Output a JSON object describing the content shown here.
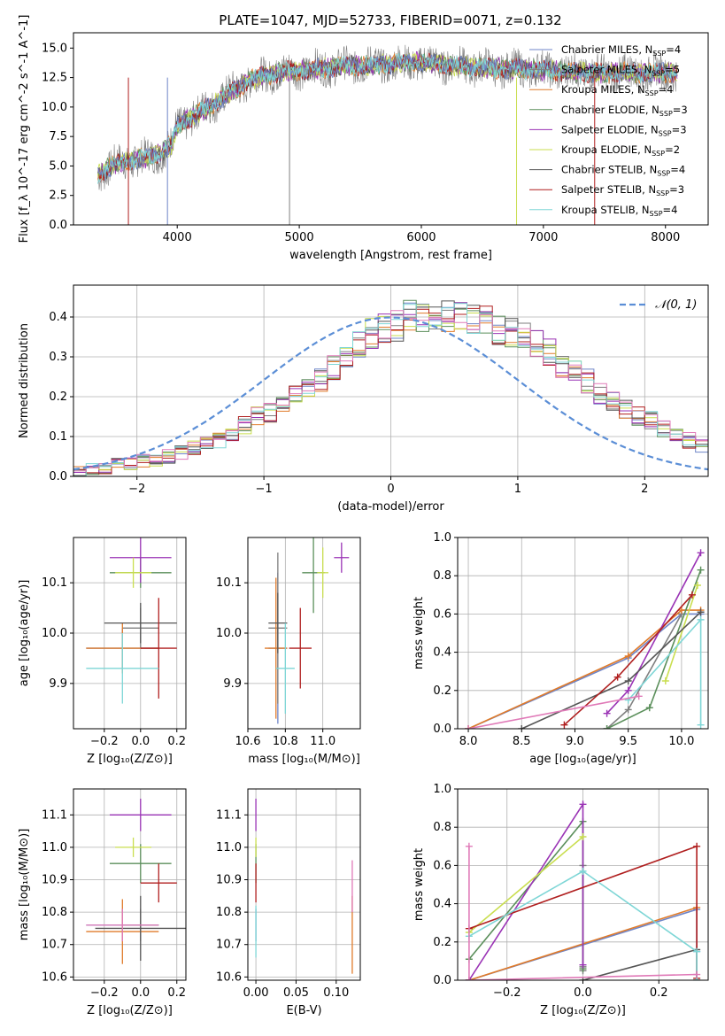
{
  "page": {
    "title": "PLATE=1047, MJD=52733, FIBERID=0071, z=0.132"
  },
  "colors": [
    "#6f85c8",
    "#7f7f7f",
    "#e07b2a",
    "#5b8f5b",
    "#9a33b5",
    "#c9de4f",
    "#555555",
    "#b01f1f",
    "#7ed6d6"
  ],
  "chart_data": [
    {
      "id": "spectrum",
      "type": "line",
      "title": "PLATE=1047, MJD=52733, FIBERID=0071, z=0.132",
      "xlabel": "wavelength [Angstrom, rest frame]",
      "ylabel": "Flux [f_λ 10^-17 erg cm^-2 s^-1 A^-1]",
      "xlim": [
        3150,
        8350
      ],
      "ylim": [
        0,
        16.3
      ],
      "xticks": [
        4000,
        5000,
        6000,
        7000,
        8000
      ],
      "yticks": [
        0.0,
        2.5,
        5.0,
        7.5,
        10.0,
        12.5,
        15.0
      ],
      "ytick_labels": [
        "0.0",
        "2.5",
        "5.0",
        "7.5",
        "10.0",
        "12.5",
        "15.0"
      ],
      "legend_position": "right",
      "legend": [
        {
          "label": "Chabrier MILES, N",
          "sub": "SSP",
          "tail": "=4"
        },
        {
          "label": "Salpeter MILES, N",
          "sub": "SSP",
          "tail": "=5"
        },
        {
          "label": "Kroupa MILES, N",
          "sub": "SSP",
          "tail": "=4"
        },
        {
          "label": "Chabrier ELODIE, N",
          "sub": "SSP",
          "tail": "=3"
        },
        {
          "label": "Salpeter ELODIE, N",
          "sub": "SSP",
          "tail": "=3"
        },
        {
          "label": "Kroupa ELODIE, N",
          "sub": "SSP",
          "tail": "=2"
        },
        {
          "label": "Chabrier STELIB, N",
          "sub": "SSP",
          "tail": "=4"
        },
        {
          "label": "Salpeter STELIB, N",
          "sub": "SSP",
          "tail": "=3"
        },
        {
          "label": "Kroupa STELIB, N",
          "sub": "SSP",
          "tail": "=4"
        }
      ],
      "continuum": [
        [
          3350,
          4.3
        ],
        [
          3500,
          5.2
        ],
        [
          3700,
          5.6
        ],
        [
          3850,
          6.0
        ],
        [
          3950,
          6.8
        ],
        [
          4000,
          8.4
        ],
        [
          4200,
          9.6
        ],
        [
          4400,
          11.0
        ],
        [
          4600,
          12.3
        ],
        [
          4800,
          12.9
        ],
        [
          5000,
          13.1
        ],
        [
          5300,
          13.4
        ],
        [
          5600,
          13.6
        ],
        [
          6000,
          13.8
        ],
        [
          6300,
          13.5
        ],
        [
          6600,
          13.3
        ],
        [
          6900,
          13.2
        ],
        [
          7200,
          13.0
        ],
        [
          7500,
          12.9
        ],
        [
          7800,
          12.9
        ],
        [
          8100,
          12.9
        ]
      ]
    },
    {
      "id": "residual-histogram",
      "type": "histogram",
      "xlabel": "(data-model)/error",
      "ylabel": "Normed distribution",
      "xlim": [
        -2.5,
        2.5
      ],
      "ylim": [
        0,
        0.48
      ],
      "xticks": [
        -2,
        -1,
        0,
        1,
        2
      ],
      "xtick_labels": [
        "−2",
        "−1",
        "0",
        "1",
        "2"
      ],
      "yticks": [
        0.0,
        0.1,
        0.2,
        0.3,
        0.4
      ],
      "ytick_labels": [
        "0.0",
        "0.1",
        "0.2",
        "0.3",
        "0.4"
      ],
      "bin_edges_range": [
        -2.5,
        2.5
      ],
      "bin_width": 0.1,
      "gaussian_label": "𝒩(0, 1)",
      "legend_position": "top-right",
      "series_base": [
        0.01,
        0.02,
        0.02,
        0.03,
        0.03,
        0.04,
        0.04,
        0.05,
        0.06,
        0.07,
        0.08,
        0.09,
        0.11,
        0.13,
        0.15,
        0.16,
        0.18,
        0.2,
        0.22,
        0.24,
        0.27,
        0.3,
        0.33,
        0.36,
        0.37,
        0.38,
        0.4,
        0.4,
        0.4,
        0.4,
        0.4,
        0.39,
        0.39,
        0.37,
        0.36,
        0.35,
        0.33,
        0.31,
        0.28,
        0.26,
        0.24,
        0.21,
        0.19,
        0.17,
        0.15,
        0.14,
        0.12,
        0.11,
        0.09,
        0.08,
        0.07,
        0.06,
        0.05,
        0.04,
        0.03,
        0.03,
        0.02,
        0.02,
        0.02,
        0.01
      ]
    },
    {
      "id": "age-vs-Z",
      "type": "scatter",
      "xlabel": "Z [log₁₀(Z/Z⊙)]",
      "ylabel": "age  [log₁₀(age/yr)]",
      "xlim": [
        -0.37,
        0.25
      ],
      "ylim": [
        9.81,
        10.19
      ],
      "xticks": [
        -0.2,
        0.0,
        0.2
      ],
      "xtick_labels": [
        "−0.2",
        "0.0",
        "0.2"
      ],
      "yticks": [
        9.9,
        10.0,
        10.1
      ],
      "ytick_labels": [
        "9.9",
        "10.0",
        "10.1"
      ],
      "points": [
        {
          "x": -0.1,
          "xerr": 0.2,
          "y": 9.97,
          "yerr": 0.04,
          "color": 0
        },
        {
          "x": 0.0,
          "xerr": 0.1,
          "y": 10.01,
          "yerr": 0.04,
          "color": 1
        },
        {
          "x": -0.1,
          "xerr": 0.2,
          "y": 9.97,
          "yerr": 0.05,
          "color": 2
        },
        {
          "x": 0.0,
          "xerr": 0.17,
          "y": 10.12,
          "yerr": 0.03,
          "color": 3
        },
        {
          "x": 0.0,
          "xerr": 0.17,
          "y": 10.15,
          "yerr": 0.05,
          "color": 4
        },
        {
          "x": -0.04,
          "xerr": 0.1,
          "y": 10.12,
          "yerr": 0.03,
          "color": 5
        },
        {
          "x": 0.0,
          "xerr": 0.2,
          "y": 10.02,
          "yerr": 0.04,
          "color": 6
        },
        {
          "x": 0.1,
          "xerr": 0.1,
          "y": 9.97,
          "yerr": 0.1,
          "color": 7
        },
        {
          "x": -0.1,
          "xerr": 0.2,
          "y": 9.93,
          "yerr": 0.07,
          "color": 8
        }
      ]
    },
    {
      "id": "age-vs-mass",
      "type": "scatter",
      "xlabel": "mass [log₁₀(M/M⊙)]",
      "ylabel": "",
      "xlim": [
        10.6,
        11.2
      ],
      "ylim": [
        9.81,
        10.19
      ],
      "xticks": [
        10.6,
        10.8,
        11.0
      ],
      "xtick_labels": [
        "10.6",
        "10.8",
        "11.0"
      ],
      "yticks": [
        9.9,
        10.0,
        10.1
      ],
      "ytick_labels": [
        "9.9",
        "10.0",
        "10.1"
      ],
      "points": [
        {
          "x": 10.76,
          "xerr": 0.05,
          "y": 9.97,
          "yerr": 0.15,
          "color": 0
        },
        {
          "x": 10.76,
          "xerr": 0.05,
          "y": 10.01,
          "yerr": 0.15,
          "color": 1
        },
        {
          "x": 10.75,
          "xerr": 0.06,
          "y": 9.97,
          "yerr": 0.14,
          "color": 2
        },
        {
          "x": 10.95,
          "xerr": 0.06,
          "y": 10.12,
          "yerr": 0.08,
          "color": 3
        },
        {
          "x": 11.1,
          "xerr": 0.04,
          "y": 10.15,
          "yerr": 0.03,
          "color": 4
        },
        {
          "x": 11.0,
          "xerr": 0.03,
          "y": 10.12,
          "yerr": 0.05,
          "color": 5
        },
        {
          "x": 10.76,
          "xerr": 0.05,
          "y": 10.02,
          "yerr": 0.06,
          "color": 6
        },
        {
          "x": 10.88,
          "xerr": 0.06,
          "y": 9.97,
          "yerr": 0.08,
          "color": 7
        },
        {
          "x": 10.8,
          "xerr": 0.05,
          "y": 9.93,
          "yerr": 0.09,
          "color": 8
        }
      ]
    },
    {
      "id": "massweight-vs-age",
      "type": "line",
      "xlabel": "age  [log₁₀(age/yr)]",
      "ylabel": "mass weight",
      "xlim": [
        7.9,
        10.25
      ],
      "ylim": [
        0,
        1.0
      ],
      "xticks": [
        8.0,
        8.5,
        9.0,
        9.5,
        10.0
      ],
      "xtick_labels": [
        "8.0",
        "8.5",
        "9.0",
        "9.5",
        "10.0"
      ],
      "yticks": [
        0.0,
        0.2,
        0.4,
        0.6,
        0.8,
        1.0
      ],
      "ytick_labels": [
        "0.0",
        "0.2",
        "0.4",
        "0.6",
        "0.8",
        "1.0"
      ],
      "series": [
        {
          "color": 0,
          "x": [
            8.0,
            9.5,
            10.0,
            10.18
          ],
          "y": [
            0.0,
            0.37,
            0.6,
            0.6
          ]
        },
        {
          "color": 1,
          "x": [
            9.3,
            9.5,
            10.0
          ],
          "y": [
            0.0,
            0.1,
            0.6
          ]
        },
        {
          "color": 2,
          "x": [
            8.0,
            9.5,
            10.0,
            10.18
          ],
          "y": [
            0.0,
            0.38,
            0.62,
            0.62
          ]
        },
        {
          "color": 3,
          "x": [
            9.3,
            9.7,
            10.18
          ],
          "y": [
            0.0,
            0.11,
            0.83
          ]
        },
        {
          "color": 4,
          "x": [
            9.3,
            9.5,
            10.18
          ],
          "y": [
            0.08,
            0.2,
            0.92
          ]
        },
        {
          "color": 5,
          "x": [
            9.85,
            10.15
          ],
          "y": [
            0.25,
            0.75
          ]
        },
        {
          "color": 6,
          "x": [
            8.5,
            9.5,
            10.18
          ],
          "y": [
            0.0,
            0.25,
            0.61
          ]
        },
        {
          "color": 7,
          "x": [
            8.9,
            9.4,
            10.1
          ],
          "y": [
            0.02,
            0.27,
            0.7
          ]
        },
        {
          "color": 8,
          "x": [
            9.5,
            10.18,
            10.18
          ],
          "y": [
            0.15,
            0.57,
            0.02
          ]
        },
        {
          "color": 9,
          "x": [
            8.0,
            9.6
          ],
          "y": [
            0.0,
            0.17
          ]
        }
      ]
    },
    {
      "id": "mass-vs-Z",
      "type": "scatter",
      "xlabel": "Z [log₁₀(Z/Z⊙)]",
      "ylabel": "mass [log₁₀(M/M⊙)]",
      "xlim": [
        -0.37,
        0.25
      ],
      "ylim": [
        10.59,
        11.18
      ],
      "xticks": [
        -0.2,
        0.0,
        0.2
      ],
      "xtick_labels": [
        "−0.2",
        "0.0",
        "0.2"
      ],
      "yticks": [
        10.6,
        10.7,
        10.8,
        10.9,
        11.0,
        11.1
      ],
      "ytick_labels": [
        "10.6",
        "10.7",
        "10.8",
        "10.9",
        "11.0",
        "11.1"
      ],
      "points": [
        {
          "x": -0.1,
          "xerr": 0.2,
          "y": 10.76,
          "yerr": 0.05,
          "color": 0
        },
        {
          "x": 0.0,
          "xerr": 0.1,
          "y": 10.76,
          "yerr": 0.05,
          "color": 1
        },
        {
          "x": -0.1,
          "xerr": 0.2,
          "y": 10.74,
          "yerr": 0.1,
          "color": 2
        },
        {
          "x": 0.0,
          "xerr": 0.17,
          "y": 10.95,
          "yerr": 0.06,
          "color": 3
        },
        {
          "x": 0.0,
          "xerr": 0.17,
          "y": 11.1,
          "yerr": 0.05,
          "color": 4
        },
        {
          "x": -0.04,
          "xerr": 0.1,
          "y": 11.0,
          "yerr": 0.03,
          "color": 5
        },
        {
          "x": 0.0,
          "xerr": 0.25,
          "y": 10.75,
          "yerr": 0.1,
          "color": 6
        },
        {
          "x": 0.1,
          "xerr": 0.1,
          "y": 10.89,
          "yerr": 0.06,
          "color": 7
        },
        {
          "x": -0.1,
          "xerr": 0.2,
          "y": 10.76,
          "yerr": 0.05,
          "color": 9
        }
      ]
    },
    {
      "id": "mass-vs-EBV",
      "type": "scatter",
      "xlabel": "E(B-V)",
      "ylabel": "",
      "xlim": [
        -0.01,
        0.13
      ],
      "ylim": [
        10.59,
        11.18
      ],
      "xticks": [
        0.0,
        0.05,
        0.1
      ],
      "xtick_labels": [
        "0.00",
        "0.05",
        "0.10"
      ],
      "yticks": [
        10.6,
        10.7,
        10.8,
        10.9,
        11.0,
        11.1
      ],
      "ytick_labels": [
        "10.6",
        "10.7",
        "10.8",
        "10.9",
        "11.0",
        "11.1"
      ],
      "points": [
        {
          "x": 0.0,
          "xerr": 0,
          "y": 10.76,
          "yerr": 0.05,
          "color": 0
        },
        {
          "x": 0.0,
          "xerr": 0,
          "y": 10.95,
          "yerr": 0.06,
          "color": 3
        },
        {
          "x": 0.0,
          "xerr": 0,
          "y": 11.1,
          "yerr": 0.05,
          "color": 4
        },
        {
          "x": 0.0,
          "xerr": 0,
          "y": 11.0,
          "yerr": 0.03,
          "color": 5
        },
        {
          "x": 0.0,
          "xerr": 0,
          "y": 10.89,
          "yerr": 0.06,
          "color": 7
        },
        {
          "x": 0.0,
          "xerr": 0,
          "y": 10.74,
          "yerr": 0.08,
          "color": 8
        },
        {
          "x": 0.12,
          "xerr": 0,
          "y": 10.73,
          "yerr": 0.12,
          "color": 2
        },
        {
          "x": 0.12,
          "xerr": 0,
          "y": 10.88,
          "yerr": 0.08,
          "color": 9
        }
      ]
    },
    {
      "id": "massweight-vs-Z",
      "type": "line",
      "xlabel": "Z [log₁₀(Z/Z⊙)]",
      "ylabel": "mass weight",
      "xlim": [
        -0.33,
        0.33
      ],
      "ylim": [
        0,
        1.0
      ],
      "xticks": [
        -0.2,
        0.0,
        0.2
      ],
      "xtick_labels": [
        "−0.2",
        "0.0",
        "0.2"
      ],
      "yticks": [
        0.0,
        0.2,
        0.4,
        0.6,
        0.8,
        1.0
      ],
      "ytick_labels": [
        "0.0",
        "0.2",
        "0.4",
        "0.6",
        "0.8",
        "1.0"
      ],
      "series": [
        {
          "color": 0,
          "x": [
            -0.3,
            0.3,
            0.3
          ],
          "y": [
            0.0,
            0.37,
            0.15
          ]
        },
        {
          "color": 1,
          "x": [
            0.0,
            0.0,
            0.0
          ],
          "y": [
            0.07,
            0.6,
            0.05
          ]
        },
        {
          "color": 2,
          "x": [
            -0.3,
            0.3
          ],
          "y": [
            0.0,
            0.38
          ]
        },
        {
          "color": 3,
          "x": [
            -0.3,
            0.0,
            0.0
          ],
          "y": [
            0.11,
            0.83,
            0.06
          ]
        },
        {
          "color": 4,
          "x": [
            -0.3,
            0.0,
            0.0
          ],
          "y": [
            0.0,
            0.92,
            0.08
          ]
        },
        {
          "color": 5,
          "x": [
            -0.3,
            0.0
          ],
          "y": [
            0.25,
            0.75
          ]
        },
        {
          "color": 6,
          "x": [
            0.0,
            0.3,
            0.3
          ],
          "y": [
            0.0,
            0.16,
            0.0
          ]
        },
        {
          "color": 7,
          "x": [
            -0.3,
            0.3,
            0.3
          ],
          "y": [
            0.27,
            0.7,
            0.01
          ]
        },
        {
          "color": 8,
          "x": [
            -0.3,
            0.0,
            0.3,
            0.3
          ],
          "y": [
            0.23,
            0.57,
            0.15,
            0.0
          ]
        },
        {
          "color": 9,
          "x": [
            -0.3,
            -0.3,
            0.3
          ],
          "y": [
            0.7,
            0.0,
            0.03
          ]
        }
      ]
    }
  ]
}
